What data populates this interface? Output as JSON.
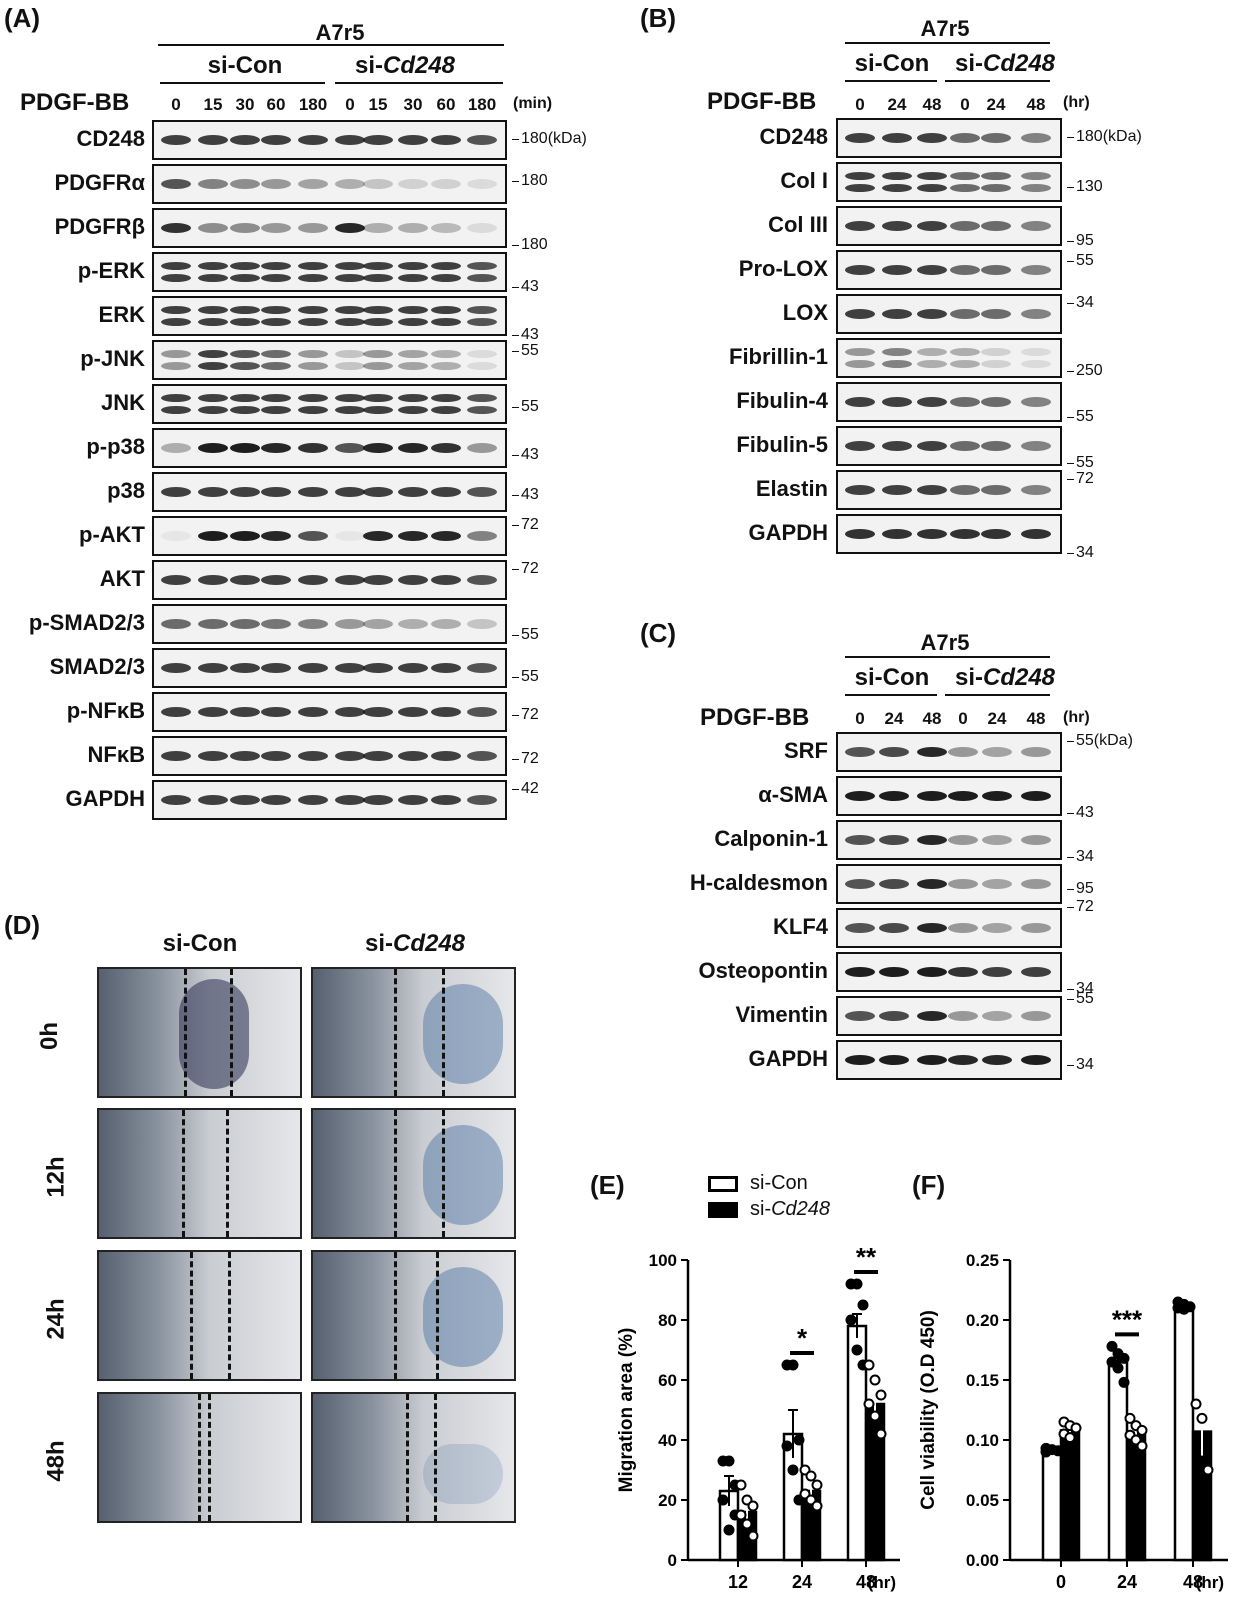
{
  "panelA": {
    "label": "(A)",
    "cell": "A7r5",
    "groups": [
      "si-Con",
      "si-"
    ],
    "group_italic": "Cd248",
    "treatment": "PDGF-BB",
    "times": [
      "0",
      "15",
      "30",
      "60",
      "180",
      "0",
      "15",
      "30",
      "60",
      "180"
    ],
    "unit": "(min)",
    "rows": [
      {
        "name": "CD248",
        "mw": "180(kDa)"
      },
      {
        "name": "PDGFRα",
        "mw": "180"
      },
      {
        "name": "PDGFRβ",
        "mw": "180"
      },
      {
        "name": "p-ERK",
        "mw": "43"
      },
      {
        "name": "ERK",
        "mw": "43"
      },
      {
        "name": "p-JNK",
        "mw": "55"
      },
      {
        "name": "JNK",
        "mw": "55"
      },
      {
        "name": "p-p38",
        "mw": "43"
      },
      {
        "name": "p38",
        "mw": "43"
      },
      {
        "name": "p-AKT",
        "mw": "72"
      },
      {
        "name": "AKT",
        "mw": "72"
      },
      {
        "name": "p-SMAD2/3",
        "mw": "55"
      },
      {
        "name": "SMAD2/3",
        "mw": "55"
      },
      {
        "name": "p-NFκB",
        "mw": "72"
      },
      {
        "name": "NFκB",
        "mw": "72"
      },
      {
        "name": "GAPDH",
        "mw": "42"
      }
    ]
  },
  "panelB": {
    "label": "(B)",
    "cell": "A7r5",
    "groups": [
      "si-Con",
      "si-"
    ],
    "group_italic": "Cd248",
    "treatment": "PDGF-BB",
    "times": [
      "0",
      "24",
      "48",
      "0",
      "24",
      "48"
    ],
    "unit": "(hr)",
    "rows": [
      {
        "name": "CD248",
        "mw": "180(kDa)"
      },
      {
        "name": "Col I",
        "mw": "130"
      },
      {
        "name": "Col III",
        "mw": "95"
      },
      {
        "name": "Pro-LOX",
        "mw": "55"
      },
      {
        "name": "LOX",
        "mw": "34"
      },
      {
        "name": "Fibrillin-1",
        "mw": "250"
      },
      {
        "name": "Fibulin-4",
        "mw": "55"
      },
      {
        "name": "Fibulin-5",
        "mw": "55"
      },
      {
        "name": "Elastin",
        "mw": "72"
      },
      {
        "name": "GAPDH",
        "mw": "34"
      }
    ]
  },
  "panelC": {
    "label": "(C)",
    "cell": "A7r5",
    "groups": [
      "si-Con",
      "si-"
    ],
    "group_italic": "Cd248",
    "treatment": "PDGF-BB",
    "times": [
      "0",
      "24",
      "48",
      "0",
      "24",
      "48"
    ],
    "unit": "(hr)",
    "rows": [
      {
        "name": "SRF",
        "mw": "55(kDa)"
      },
      {
        "name": "α-SMA",
        "mw": "43"
      },
      {
        "name": "Calponin-1",
        "mw": "34"
      },
      {
        "name": "H-caldesmon",
        "mw": "95"
      },
      {
        "name": "KLF4",
        "mw": "72"
      },
      {
        "name": "Osteopontin",
        "mw": "34"
      },
      {
        "name": "Vimentin",
        "mw": "55"
      },
      {
        "name": "GAPDH",
        "mw": "34"
      }
    ]
  },
  "panelD": {
    "label": "(D)",
    "columns": [
      "si-Con",
      "si-"
    ],
    "column_italic": "Cd248",
    "timepoints": [
      "0h",
      "12h",
      "24h",
      "48h"
    ]
  },
  "legend": {
    "items": [
      "si-Con",
      "si-"
    ],
    "italic": "Cd248",
    "colors": [
      "#ffffff",
      "#000000"
    ]
  },
  "chart_data": [
    {
      "panel": "(E)",
      "type": "bar",
      "categories": [
        "12",
        "24",
        "48"
      ],
      "xunit": "(hr)",
      "ylabel": "Migration area (%)",
      "ylim": [
        0,
        100
      ],
      "yticks": [
        "0",
        "20",
        "40",
        "60",
        "80",
        "100"
      ],
      "series": [
        {
          "name": "si-Con",
          "values": [
            23,
            42,
            78
          ],
          "sem": [
            5,
            8,
            4
          ],
          "points": [
            [
              33,
              33,
              25,
              20,
              10,
              15
            ],
            [
              65,
              65,
              40,
              38,
              30,
              20
            ],
            [
              92,
              92,
              85,
              80,
              70,
              65
            ]
          ]
        },
        {
          "name": "si-Cd248",
          "values": [
            16,
            23,
            52
          ],
          "sem": [
            3,
            3,
            3
          ],
          "points": [
            [
              25,
              20,
              18,
              15,
              12,
              8
            ],
            [
              30,
              28,
              25,
              22,
              20,
              18
            ],
            [
              65,
              60,
              55,
              52,
              48,
              42
            ]
          ]
        }
      ],
      "significance": [
        {
          "category": "24",
          "text": "*"
        },
        {
          "category": "48",
          "text": "**"
        }
      ]
    },
    {
      "panel": "(F)",
      "type": "bar",
      "categories": [
        "0",
        "24",
        "48"
      ],
      "xunit": "(hr)",
      "ylabel": "Cell viability (O.D 450)",
      "ylim": [
        0,
        0.25
      ],
      "yticks": [
        "0.00",
        "0.05",
        "0.10",
        "0.15",
        "0.20",
        "0.25"
      ],
      "series": [
        {
          "name": "si-Con",
          "values": [
            0.092,
            0.165,
            0.211
          ],
          "sem": [
            0.002,
            0.006,
            0.002
          ],
          "points": [
            [
              0.093,
              0.092,
              0.091,
              0.09
            ],
            [
              0.178,
              0.172,
              0.168,
              0.165,
              0.16,
              0.148
            ],
            [
              0.215,
              0.213,
              0.211,
              0.21,
              0.209
            ]
          ]
        },
        {
          "name": "si-Cd248",
          "values": [
            0.108,
            0.106,
            0.107
          ],
          "sem": [
            0.003,
            0.004,
            0.02
          ],
          "points": [
            [
              0.115,
              0.112,
              0.11,
              0.105,
              0.102
            ],
            [
              0.118,
              0.112,
              0.108,
              0.104,
              0.1,
              0.095
            ],
            [
              0.13,
              0.118,
              0.075
            ]
          ]
        }
      ],
      "significance": [
        {
          "category": "24",
          "text": "***"
        }
      ]
    }
  ]
}
